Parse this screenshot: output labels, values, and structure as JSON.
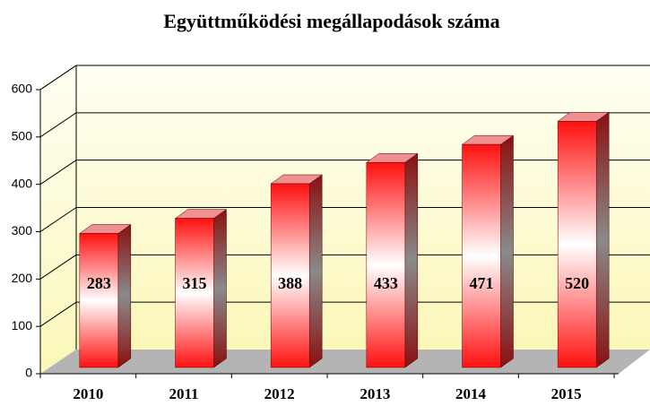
{
  "chart_data": {
    "type": "bar",
    "title": "Együttműködési megállapodások száma",
    "categories": [
      "2010",
      "2011",
      "2012",
      "2013",
      "2014",
      "2015"
    ],
    "values": [
      283,
      315,
      388,
      433,
      471,
      520
    ],
    "color": "#ff0000",
    "ylim": [
      0,
      600
    ],
    "yticks": [
      0,
      100,
      200,
      300,
      400,
      500,
      600
    ],
    "grid": true
  }
}
